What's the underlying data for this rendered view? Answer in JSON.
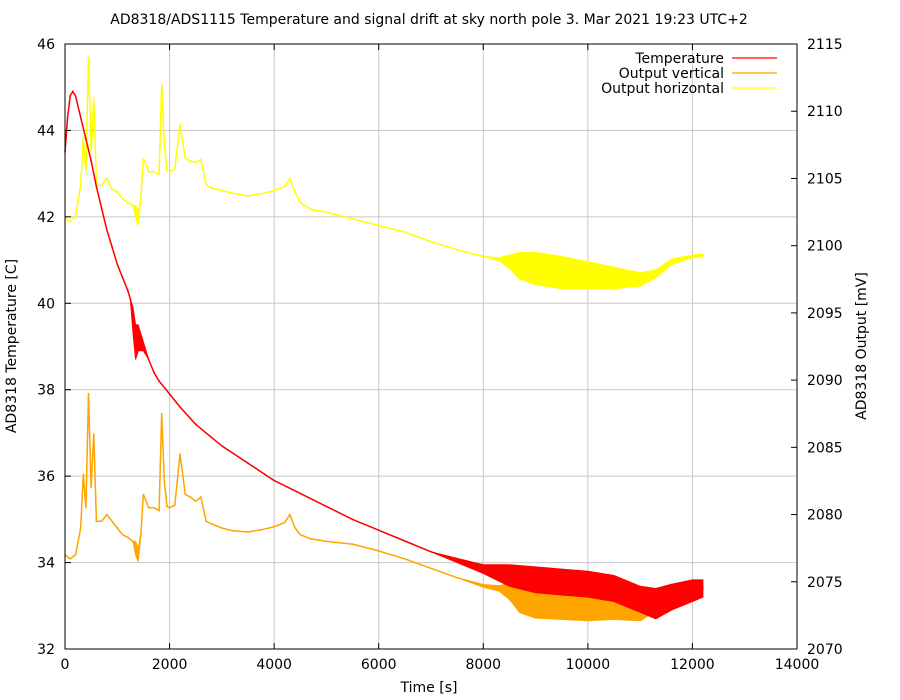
{
  "chart_data": {
    "type": "line",
    "title": "AD8318/ADS1115 Temperature and signal drift at sky north pole 3. Mar 2021 19:23 UTC+2",
    "xlabel": "Time [s]",
    "ylabel": "AD8318 Temperature [C]",
    "y2label": "AD8318 Output [mV]",
    "xlim": [
      0,
      14000
    ],
    "ylim": [
      32,
      46
    ],
    "y2lim": [
      2070,
      2115
    ],
    "x_ticks": [
      "0",
      "2000",
      "4000",
      "6000",
      "8000",
      "10000",
      "12000",
      "14000"
    ],
    "y_ticks": [
      "32",
      "34",
      "36",
      "38",
      "40",
      "42",
      "44",
      "46"
    ],
    "y2_ticks": [
      "2070",
      "2075",
      "2080",
      "2085",
      "2090",
      "2095",
      "2100",
      "2105",
      "2110",
      "2115"
    ],
    "grid": true,
    "legend": "top-right",
    "series": [
      {
        "name": "Temperature",
        "axis": "left",
        "color": "#ff0000",
        "x": [
          0,
          50,
          100,
          150,
          200,
          300,
          400,
          500,
          600,
          700,
          800,
          900,
          1000,
          1100,
          1200,
          1250,
          1300,
          1350,
          1400,
          1450,
          1500,
          1600,
          1700,
          1800,
          2000,
          2200,
          2500,
          2800,
          3000,
          3500,
          4000,
          4500,
          5000,
          5500,
          6000,
          6500,
          7000,
          7500,
          8000,
          8500,
          9000,
          9500,
          10000,
          10500,
          11000,
          11300,
          11600,
          12000,
          12200
        ],
        "y": [
          43.5,
          44.3,
          44.8,
          44.9,
          44.8,
          44.3,
          43.8,
          43.3,
          42.7,
          42.2,
          41.7,
          41.3,
          40.9,
          40.6,
          40.3,
          40.1,
          39.6,
          39.1,
          39.2,
          39.1,
          39.0,
          38.7,
          38.4,
          38.2,
          37.9,
          37.6,
          37.2,
          36.9,
          36.7,
          36.3,
          35.9,
          35.6,
          35.3,
          35.0,
          34.75,
          34.5,
          34.25,
          34.05,
          33.85,
          33.7,
          33.6,
          33.55,
          33.5,
          33.4,
          33.15,
          33.05,
          33.2,
          33.35,
          33.4
        ],
        "spread": [
          0,
          0,
          0,
          0,
          0,
          0,
          0,
          0,
          0,
          0,
          0,
          0,
          0,
          0,
          0,
          0,
          0.3,
          0.4,
          0.3,
          0.2,
          0.1,
          0,
          0,
          0,
          0,
          0,
          0,
          0,
          0,
          0,
          0,
          0,
          0,
          0,
          0,
          0,
          0,
          0.05,
          0.1,
          0.25,
          0.3,
          0.3,
          0.3,
          0.3,
          0.3,
          0.35,
          0.3,
          0.25,
          0.2
        ]
      },
      {
        "name": "Output vertical",
        "axis": "right",
        "color": "#ffa500",
        "x": [
          0,
          100,
          200,
          300,
          350,
          400,
          450,
          500,
          550,
          600,
          700,
          800,
          900,
          1000,
          1100,
          1200,
          1300,
          1350,
          1400,
          1450,
          1500,
          1600,
          1700,
          1800,
          1850,
          1900,
          1950,
          2000,
          2100,
          2200,
          2300,
          2400,
          2500,
          2600,
          2700,
          2800,
          3000,
          3200,
          3500,
          3800,
          4000,
          4200,
          4300,
          4400,
          4500,
          4700,
          5000,
          5500,
          6000,
          6500,
          7000,
          7500,
          8000,
          8300,
          8500,
          8700,
          9000,
          9500,
          10000,
          10500,
          11000,
          11300,
          11600,
          12000,
          12200
        ],
        "y": [
          2077.0,
          2076.7,
          2077.0,
          2079.0,
          2083.0,
          2080.5,
          2089.0,
          2082.0,
          2086.0,
          2079.5,
          2079.5,
          2080.0,
          2079.5,
          2079.0,
          2078.5,
          2078.3,
          2078.0,
          2077.5,
          2077.0,
          2078.5,
          2081.5,
          2080.5,
          2080.5,
          2080.3,
          2087.5,
          2082.5,
          2080.6,
          2080.5,
          2080.7,
          2084.5,
          2081.5,
          2081.3,
          2081.0,
          2081.3,
          2079.5,
          2079.3,
          2079.0,
          2078.8,
          2078.7,
          2078.9,
          2079.1,
          2079.4,
          2080.0,
          2079.0,
          2078.5,
          2078.2,
          2078.0,
          2077.8,
          2077.3,
          2076.7,
          2076.0,
          2075.3,
          2074.7,
          2074.5,
          2074.3,
          2073.7,
          2073.5,
          2073.4,
          2073.2,
          2073.3,
          2073.1,
          2073.5,
          2074.2,
          2074.5,
          2074.6
        ],
        "spread": [
          0,
          0,
          0,
          0,
          0,
          0,
          0,
          0,
          0,
          0,
          0,
          0,
          0,
          0,
          0,
          0,
          0,
          0.5,
          0.5,
          0,
          0,
          0,
          0,
          0,
          0,
          0,
          0,
          0,
          0,
          0,
          0,
          0,
          0,
          0,
          0,
          0,
          0,
          0,
          0,
          0,
          0,
          0,
          0,
          0,
          0,
          0,
          0,
          0,
          0,
          0,
          0,
          0,
          0.1,
          0.2,
          0.6,
          1.0,
          1.2,
          1.2,
          1.1,
          1.1,
          1.0,
          0.7,
          0.4,
          0.3,
          0.2
        ]
      },
      {
        "name": "Output horizontal",
        "axis": "right",
        "color": "#ffff00",
        "x": [
          0,
          100,
          200,
          300,
          350,
          400,
          450,
          500,
          550,
          600,
          700,
          800,
          900,
          1000,
          1100,
          1200,
          1300,
          1350,
          1400,
          1450,
          1500,
          1600,
          1700,
          1800,
          1850,
          1900,
          1950,
          2000,
          2100,
          2200,
          2300,
          2400,
          2500,
          2600,
          2700,
          2800,
          3000,
          3200,
          3500,
          3800,
          4000,
          4200,
          4300,
          4400,
          4500,
          4700,
          5000,
          5500,
          6000,
          6500,
          7000,
          7500,
          8000,
          8300,
          8500,
          8700,
          9000,
          9500,
          10000,
          10500,
          11000,
          11300,
          11600,
          12000,
          12200
        ],
        "y": [
          2102.0,
          2101.8,
          2102.2,
          2104.5,
          2108.0,
          2105.5,
          2114.0,
          2107.0,
          2111.0,
          2104.5,
          2104.5,
          2105.0,
          2104.2,
          2104.0,
          2103.5,
          2103.2,
          2103.0,
          2102.5,
          2102.0,
          2103.5,
          2106.5,
          2105.5,
          2105.5,
          2105.3,
          2112.0,
          2107.5,
          2105.6,
          2105.5,
          2105.7,
          2109.0,
          2106.5,
          2106.3,
          2106.2,
          2106.4,
          2104.5,
          2104.3,
          2104.1,
          2103.9,
          2103.7,
          2103.9,
          2104.1,
          2104.4,
          2105.0,
          2104.0,
          2103.2,
          2102.7,
          2102.5,
          2102.0,
          2101.5,
          2101.0,
          2100.3,
          2099.7,
          2099.2,
          2099.0,
          2098.8,
          2098.5,
          2098.3,
          2098.0,
          2097.8,
          2097.6,
          2097.5,
          2097.9,
          2098.8,
          2099.2,
          2099.3
        ],
        "spread": [
          0,
          0,
          0,
          0,
          0,
          0,
          0,
          0,
          0,
          0,
          0,
          0,
          0,
          0,
          0,
          0,
          0,
          0.5,
          0.5,
          0,
          0,
          0,
          0,
          0,
          0,
          0,
          0,
          0,
          0,
          0,
          0,
          0,
          0,
          0,
          0,
          0,
          0,
          0,
          0,
          0,
          0,
          0,
          0,
          0,
          0,
          0,
          0,
          0,
          0,
          0,
          0,
          0,
          0,
          0.1,
          0.5,
          1.0,
          1.2,
          1.2,
          1.0,
          0.8,
          0.5,
          0.3,
          0.2,
          0.1,
          0.1
        ]
      }
    ]
  }
}
